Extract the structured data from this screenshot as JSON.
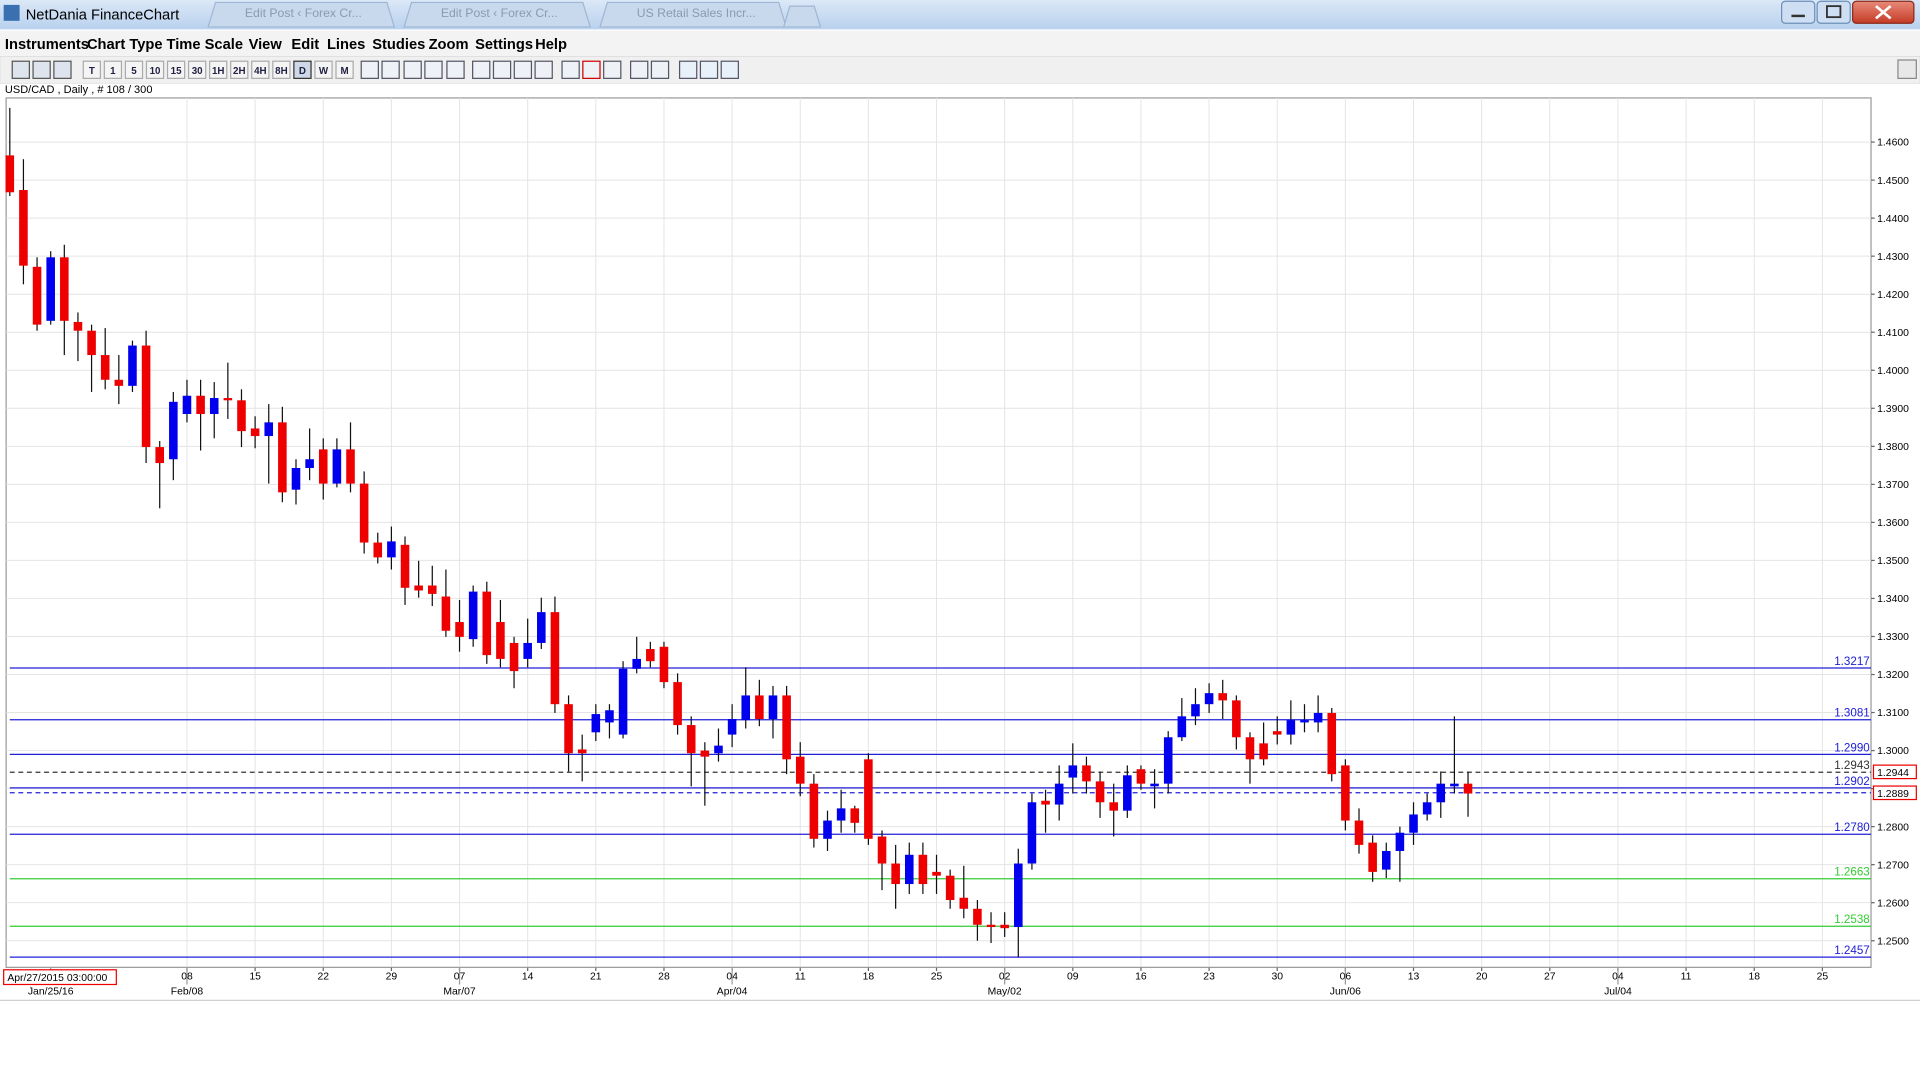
{
  "window": {
    "title": "NetDania FinanceChart",
    "tabs": [
      "Edit Post ‹ Forex Cr...",
      "Edit Post ‹ Forex Cr...",
      "US Retail Sales Incr..."
    ],
    "menu": [
      "Instruments",
      "Chart Type",
      "Time Scale",
      "View",
      "Edit",
      "Lines",
      "Studies",
      "Zoom",
      "Settings",
      "Help"
    ],
    "toolbar": [
      "T",
      "1",
      "5",
      "10",
      "15",
      "30",
      "1H",
      "2H",
      "4H",
      "8H",
      "D",
      "W",
      "M"
    ]
  },
  "chart_data": {
    "type": "candlestick",
    "instrument_label": "USD/CAD , Daily , # 108 / 300",
    "cursor_time": "Apr/27/2015 03:00:00",
    "up_color": "#0000ee",
    "down_color": "#ee0000",
    "grid": true,
    "xlim": [
      -0.27,
      136.57
    ],
    "ylim": [
      1.243,
      1.4716
    ],
    "yticks": [
      {
        "value": 1.25,
        "label": "1.2500"
      },
      {
        "value": 1.26,
        "label": "1.2600"
      },
      {
        "value": 1.27,
        "label": "1.2700"
      },
      {
        "value": 1.28,
        "label": "1.2800"
      },
      {
        "value": 1.29,
        "label": "1.2900"
      },
      {
        "value": 1.3,
        "label": "1.3000"
      },
      {
        "value": 1.31,
        "label": "1.3100"
      },
      {
        "value": 1.32,
        "label": "1.3200"
      },
      {
        "value": 1.33,
        "label": "1.3300"
      },
      {
        "value": 1.34,
        "label": "1.3400"
      },
      {
        "value": 1.35,
        "label": "1.3500"
      },
      {
        "value": 1.36,
        "label": "1.3600"
      },
      {
        "value": 1.37,
        "label": "1.3700"
      },
      {
        "value": 1.38,
        "label": "1.3800"
      },
      {
        "value": 1.39,
        "label": "1.3900"
      },
      {
        "value": 1.4,
        "label": "1.4000"
      },
      {
        "value": 1.41,
        "label": "1.4100"
      },
      {
        "value": 1.42,
        "label": "1.4200"
      },
      {
        "value": 1.43,
        "label": "1.4300"
      },
      {
        "value": 1.44,
        "label": "1.4400"
      },
      {
        "value": 1.45,
        "label": "1.4500"
      },
      {
        "value": 1.46,
        "label": "1.4600"
      }
    ],
    "xticks": [
      {
        "value": 13,
        "label": "08"
      },
      {
        "value": 18,
        "label": "15"
      },
      {
        "value": 23,
        "label": "22"
      },
      {
        "value": 28,
        "label": "29"
      },
      {
        "value": 33,
        "label": "07"
      },
      {
        "value": 38,
        "label": "14"
      },
      {
        "value": 43,
        "label": "21"
      },
      {
        "value": 48,
        "label": "28"
      },
      {
        "value": 53,
        "label": "04"
      },
      {
        "value": 58,
        "label": "11"
      },
      {
        "value": 63,
        "label": "18"
      },
      {
        "value": 68,
        "label": "25"
      },
      {
        "value": 73,
        "label": "02"
      },
      {
        "value": 78,
        "label": "09"
      },
      {
        "value": 83,
        "label": "16"
      },
      {
        "value": 88,
        "label": "23"
      },
      {
        "value": 93,
        "label": "30"
      },
      {
        "value": 98,
        "label": "06"
      },
      {
        "value": 103,
        "label": "13"
      },
      {
        "value": 108,
        "label": "20"
      },
      {
        "value": 113,
        "label": "27"
      },
      {
        "value": 118,
        "label": "04"
      },
      {
        "value": 123,
        "label": "11"
      },
      {
        "value": 128,
        "label": "18"
      },
      {
        "value": 133,
        "label": "25"
      }
    ],
    "xticks_major": [
      {
        "value": 3,
        "label": "Jan/25/16"
      },
      {
        "value": 13,
        "label": "Feb/08"
      },
      {
        "value": 33,
        "label": "Mar/07"
      },
      {
        "value": 53,
        "label": "Apr/04"
      },
      {
        "value": 73,
        "label": "May/02"
      },
      {
        "value": 98,
        "label": "Jun/06"
      },
      {
        "value": 118,
        "label": "Jul/04"
      }
    ],
    "lines": [
      {
        "value": 1.3217,
        "label": "1.3217",
        "color": "#2020d8"
      },
      {
        "value": 1.3081,
        "label": "1.3081",
        "color": "#2020d8"
      },
      {
        "value": 1.299,
        "label": "1.2990",
        "color": "#2020d8"
      },
      {
        "value": 1.2943,
        "label": "1.2943",
        "color": "#333333",
        "dashed": true
      },
      {
        "value": 1.2902,
        "label": "1.2902",
        "color": "#2020d8"
      },
      {
        "value": 1.2889,
        "color": "#2020d8",
        "dashed": true
      },
      {
        "value": 1.278,
        "label": "1.2780",
        "color": "#2020d8"
      },
      {
        "value": 1.2663,
        "label": "1.2663",
        "color": "#33cc33"
      },
      {
        "value": 1.2538,
        "label": "1.2538",
        "color": "#33cc33"
      },
      {
        "value": 1.2457,
        "label": "1.2457",
        "color": "#2020d8"
      }
    ],
    "price_markers": [
      {
        "value": 1.2944,
        "label": "1.2944"
      },
      {
        "value": 1.2889,
        "label": "1.2889"
      }
    ],
    "x": [
      0,
      1,
      2,
      3,
      4,
      5,
      6,
      7,
      8,
      9,
      10,
      11,
      12,
      13,
      14,
      15,
      16,
      17,
      18,
      19,
      20,
      21,
      22,
      23,
      24,
      25,
      26,
      27,
      28,
      29,
      30,
      31,
      32,
      33,
      34,
      35,
      36,
      37,
      38,
      39,
      40,
      41,
      42,
      43,
      44,
      45,
      46,
      47,
      48,
      49,
      50,
      51,
      52,
      53,
      54,
      55,
      56,
      57,
      58,
      59,
      60,
      61,
      62,
      63,
      64,
      65,
      66,
      67,
      68,
      69,
      70,
      71,
      72,
      73,
      74,
      75,
      76,
      77,
      78,
      79,
      80,
      81,
      82,
      83,
      84,
      85,
      86,
      87,
      88,
      89,
      90,
      91,
      92,
      93,
      94,
      95,
      96,
      97,
      98,
      99,
      100,
      101,
      102,
      103,
      104,
      105,
      106,
      107
    ],
    "open": [
      1.4565,
      1.4474,
      1.4272,
      1.413,
      1.4297,
      1.4127,
      1.4104,
      1.404,
      1.3975,
      1.3959,
      1.4065,
      1.3798,
      1.3766,
      1.3885,
      1.3933,
      1.3885,
      1.3927,
      1.3921,
      1.3847,
      1.3827,
      1.3863,
      1.3686,
      1.3743,
      1.3792,
      1.3702,
      1.3792,
      1.3702,
      1.3547,
      1.3508,
      1.3541,
      1.3434,
      1.3434,
      1.3405,
      1.3338,
      1.3293,
      1.3418,
      1.3338,
      1.3283,
      1.3241,
      1.3283,
      1.3364,
      1.3122,
      1.3003,
      1.3048,
      1.3074,
      1.3042,
      1.3215,
      1.3267,
      1.3273,
      1.318,
      1.3067,
      1.3,
      1.2993,
      1.3042,
      1.308,
      1.3145,
      1.3083,
      1.3145,
      1.2984,
      1.2913,
      1.2768,
      1.2816,
      1.2848,
      1.2977,
      1.2774,
      1.2703,
      1.2649,
      1.2726,
      1.2681,
      1.2671,
      1.2613,
      1.2584,
      1.2542,
      1.2542,
      1.2536,
      1.2703,
      1.2868,
      1.2858,
      1.2929,
      1.2961,
      1.2919,
      1.2864,
      1.2842,
      1.2951,
      1.2906,
      1.2913,
      1.3035,
      1.309,
      1.3122,
      1.3151,
      1.3132,
      1.3035,
      1.3019,
      1.3051,
      1.3042,
      1.3074,
      1.3074,
      1.3099,
      1.2961,
      1.2816,
      1.2758,
      1.2687,
      1.2736,
      1.2784,
      1.2832,
      1.2864,
      1.2906,
      1.2913
    ],
    "high": [
      1.469,
      1.4555,
      1.4297,
      1.4313,
      1.433,
      1.4152,
      1.412,
      1.4111,
      1.404,
      1.4078,
      1.4104,
      1.3814,
      1.3943,
      1.3975,
      1.3975,
      1.3969,
      1.402,
      1.395,
      1.3879,
      1.3911,
      1.3904,
      1.3766,
      1.3847,
      1.3821,
      1.3821,
      1.3863,
      1.3734,
      1.3573,
      1.3589,
      1.3563,
      1.3499,
      1.3486,
      1.3476,
      1.3396,
      1.3434,
      1.3444,
      1.3396,
      1.3299,
      1.3347,
      1.3402,
      1.3405,
      1.3145,
      1.3042,
      1.3122,
      1.3122,
      1.3235,
      1.3299,
      1.3286,
      1.3286,
      1.3203,
      1.309,
      1.3022,
      1.3058,
      1.3122,
      1.3219,
      1.3186,
      1.317,
      1.317,
      1.3022,
      1.2938,
      1.2842,
      1.2897,
      1.2855,
      1.2993,
      1.279,
      1.2752,
      1.2758,
      1.2758,
      1.2726,
      1.2687,
      1.2697,
      1.2607,
      1.2575,
      1.2575,
      1.2742,
      1.2887,
      1.2897,
      1.2961,
      1.3019,
      1.2984,
      1.2945,
      1.2913,
      1.2961,
      1.2961,
      1.2951,
      1.3051,
      1.3138,
      1.3164,
      1.3177,
      1.3186,
      1.3145,
      1.3048,
      1.3074,
      1.309,
      1.3132,
      1.3122,
      1.3145,
      1.3112,
      1.2977,
      1.2848,
      1.2777,
      1.2758,
      1.28,
      1.2864,
      1.2887,
      1.2945,
      1.309,
      1.2945
    ],
    "low": [
      1.4458,
      1.4226,
      1.4104,
      1.412,
      1.404,
      1.4024,
      1.3943,
      1.395,
      1.3911,
      1.3943,
      1.3756,
      1.3637,
      1.3711,
      1.3863,
      1.3789,
      1.3821,
      1.3872,
      1.3798,
      1.3795,
      1.3702,
      1.3653,
      1.3647,
      1.3711,
      1.366,
      1.3692,
      1.3679,
      1.3518,
      1.3492,
      1.3476,
      1.3383,
      1.3402,
      1.338,
      1.3299,
      1.326,
      1.3273,
      1.3228,
      1.3219,
      1.3164,
      1.3219,
      1.3267,
      1.3099,
      1.2945,
      1.2919,
      1.3025,
      1.3032,
      1.3032,
      1.3203,
      1.3219,
      1.3164,
      1.3042,
      1.2906,
      1.2855,
      1.2971,
      1.3009,
      1.3058,
      1.3064,
      1.3032,
      1.2938,
      1.288,
      1.2745,
      1.2736,
      1.2784,
      1.2784,
      1.2752,
      1.2633,
      1.2584,
      1.2623,
      1.2623,
      1.2623,
      1.2584,
      1.2559,
      1.25,
      1.2494,
      1.251,
      1.2457,
      1.2687,
      1.2784,
      1.2816,
      1.2887,
      1.2887,
      1.2823,
      1.2774,
      1.2823,
      1.2897,
      1.2848,
      1.2887,
      1.3025,
      1.3067,
      1.3099,
      1.3083,
      1.3003,
      1.2913,
      1.2961,
      1.3016,
      1.3016,
      1.3048,
      1.3048,
      1.2919,
      1.279,
      1.2729,
      1.2655,
      1.2665,
      1.2655,
      1.2752,
      1.2816,
      1.2823,
      1.2887,
      1.2826
    ],
    "close": [
      1.4468,
      1.4275,
      1.412,
      1.4297,
      1.413,
      1.4104,
      1.404,
      1.3975,
      1.3959,
      1.4065,
      1.3798,
      1.3756,
      1.3917,
      1.3933,
      1.3885,
      1.3927,
      1.3921,
      1.384,
      1.3827,
      1.3863,
      1.3679,
      1.3743,
      1.3766,
      1.3702,
      1.3792,
      1.3702,
      1.3547,
      1.3508,
      1.355,
      1.3428,
      1.3421,
      1.3412,
      1.3315,
      1.3299,
      1.3418,
      1.3251,
      1.3241,
      1.3209,
      1.3283,
      1.3364,
      1.3122,
      1.2993,
      1.2993,
      1.3096,
      1.3106,
      1.3215,
      1.3241,
      1.3235,
      1.318,
      1.3067,
      1.2993,
      1.2984,
      1.3013,
      1.3083,
      1.3145,
      1.3083,
      1.3145,
      1.2977,
      1.2913,
      1.2768,
      1.2816,
      1.2848,
      1.281,
      1.2768,
      1.2703,
      1.2649,
      1.2726,
      1.2649,
      1.2671,
      1.2607,
      1.2584,
      1.2542,
      1.2536,
      1.2533,
      1.2703,
      1.2864,
      1.2858,
      1.2913,
      1.2961,
      1.2919,
      1.2864,
      1.2842,
      1.2935,
      1.2913,
      1.2913,
      1.3035,
      1.309,
      1.3122,
      1.3151,
      1.3132,
      1.3035,
      1.2977,
      1.2977,
      1.3042,
      1.308,
      1.308,
      1.3099,
      1.2938,
      1.2816,
      1.2752,
      1.2681,
      1.2736,
      1.2784,
      1.2832,
      1.2864,
      1.2913,
      1.2913,
      1.2887
    ]
  }
}
